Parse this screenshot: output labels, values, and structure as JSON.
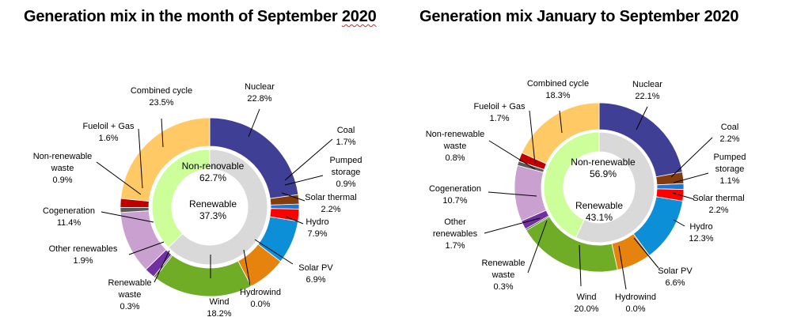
{
  "chart_data": [
    {
      "type": "pie",
      "title": "Generation mix in the month of September 2020",
      "title_main": "Generation mix in the month of September ",
      "title_year": "2020",
      "inner_ring": [
        {
          "name": "Non-renovable",
          "value": 62.7,
          "value_label": "62.7%",
          "color": "#d9d9d9"
        },
        {
          "name": "Renewable",
          "value": 37.3,
          "value_label": "37.3%",
          "color": "#ccff99"
        }
      ],
      "outer_ring": [
        {
          "name": "Nuclear",
          "value": 22.8,
          "value_label": "22.8%",
          "color": "#3f3f95"
        },
        {
          "name": "Coal",
          "value": 1.7,
          "value_label": "1.7%",
          "color": "#843c0c"
        },
        {
          "name": "Pumped storage",
          "value": 0.9,
          "value_label": "0.9%",
          "color": "#1f77d4"
        },
        {
          "name": "Solar thermal",
          "value": 2.2,
          "value_label": "2.2%",
          "color": "#ff0000"
        },
        {
          "name": "Hydro",
          "value": 7.9,
          "value_label": "7.9%",
          "color": "#0d8fd8"
        },
        {
          "name": "Solar PV",
          "value": 6.9,
          "value_label": "6.9%",
          "color": "#e6830e"
        },
        {
          "name": "Hydrowind",
          "value": 0.0,
          "value_label": "0.0%",
          "color": "#2e75b6"
        },
        {
          "name": "Wind",
          "value": 18.2,
          "value_label": "18.2%",
          "color": "#70ad27"
        },
        {
          "name": "Renewable waste",
          "value": 0.3,
          "value_label": "0.3%",
          "color": "#375623"
        },
        {
          "name": "Other renewables",
          "value": 1.9,
          "value_label": "1.9%",
          "color": "#7030a0"
        },
        {
          "name": "Cogeneration",
          "value": 11.4,
          "value_label": "11.4%",
          "color": "#c9a0d0"
        },
        {
          "name": "Non-renewable waste",
          "value": 0.9,
          "value_label": "0.9%",
          "color": "#595959"
        },
        {
          "name": "Fueloil + Gas",
          "value": 1.6,
          "value_label": "1.6%",
          "color": "#c00000"
        },
        {
          "name": "Combined cycle",
          "value": 23.5,
          "value_label": "23.5%",
          "color": "#ffc966"
        }
      ]
    },
    {
      "type": "pie",
      "title": "Generation mix January to September 2020",
      "inner_ring": [
        {
          "name": "Non-renewable",
          "value": 56.9,
          "value_label": "56.9%",
          "color": "#d9d9d9"
        },
        {
          "name": "Renewable",
          "value": 43.1,
          "value_label": "43.1%",
          "color": "#ccff99"
        }
      ],
      "outer_ring": [
        {
          "name": "Nuclear",
          "value": 22.1,
          "value_label": "22.1%",
          "color": "#3f3f95"
        },
        {
          "name": "Coal",
          "value": 2.2,
          "value_label": "2.2%",
          "color": "#843c0c"
        },
        {
          "name": "Pumped storage",
          "value": 1.1,
          "value_label": "1.1%",
          "color": "#1f77d4"
        },
        {
          "name": "Solar thermal",
          "value": 2.2,
          "value_label": "2.2%",
          "color": "#ff0000"
        },
        {
          "name": "Hydro",
          "value": 12.3,
          "value_label": "12.3%",
          "color": "#0d8fd8"
        },
        {
          "name": "Solar PV",
          "value": 6.6,
          "value_label": "6.6%",
          "color": "#e6830e"
        },
        {
          "name": "Hydrowind",
          "value": 0.0,
          "value_label": "0.0%",
          "color": "#2e75b6"
        },
        {
          "name": "Wind",
          "value": 20.0,
          "value_label": "20.0%",
          "color": "#70ad27"
        },
        {
          "name": "Renewable waste",
          "value": 0.3,
          "value_label": "0.3%",
          "color": "#375623"
        },
        {
          "name": "Other renewables",
          "value": 1.7,
          "value_label": "1.7%",
          "color": "#7030a0"
        },
        {
          "name": "Cogeneration",
          "value": 10.7,
          "value_label": "10.7%",
          "color": "#c9a0d0"
        },
        {
          "name": "Non-renewable waste",
          "value": 0.8,
          "value_label": "0.8%",
          "color": "#595959"
        },
        {
          "name": "Fueloil + Gas",
          "value": 1.7,
          "value_label": "1.7%",
          "color": "#c00000"
        },
        {
          "name": "Combined cycle",
          "value": 18.3,
          "value_label": "18.3%",
          "color": "#ffc966"
        }
      ]
    }
  ]
}
